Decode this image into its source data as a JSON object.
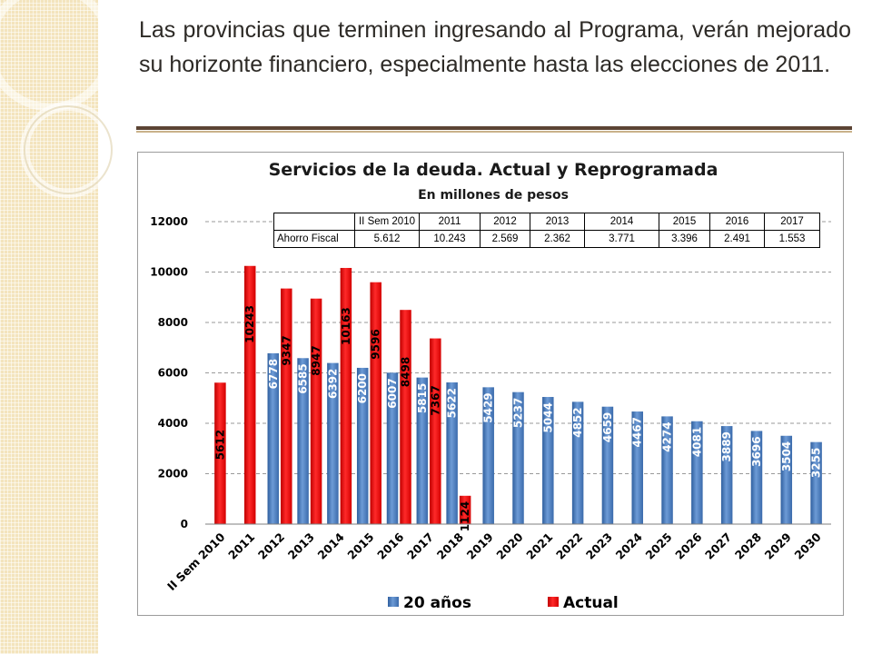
{
  "headline": "Las provincias que terminen ingresando al Programa, verán mejorado su horizonte financiero, especialmente hasta las elecciones de 2011.",
  "colors": {
    "series_20_anos": "#4f81bd",
    "series_actual": "#ff0000",
    "rule": "#5c4434",
    "stripe": "#f3e4bd"
  },
  "savings_table": {
    "headers": [
      "II Sem 2010",
      "2011",
      "2012",
      "2013",
      "2014",
      "2015",
      "2016",
      "2017"
    ],
    "row_label": "Ahorro Fiscal",
    "values": [
      "5.612",
      "10.243",
      "2.569",
      "2.362",
      "3.771",
      "3.396",
      "2.491",
      "1.553"
    ]
  },
  "chart_data": {
    "type": "bar",
    "title": "Servicios de la deuda. Actual y Reprogramada",
    "subtitle": "En millones de pesos",
    "xlabel": "",
    "ylabel": "",
    "ylim": [
      0,
      12000
    ],
    "yticks": [
      0,
      2000,
      4000,
      6000,
      8000,
      10000,
      12000
    ],
    "grid": true,
    "legend_position": "bottom",
    "categories": [
      "II Sem 2010",
      "2011",
      "2012",
      "2013",
      "2014",
      "2015",
      "2016",
      "2017",
      "2018",
      "2019",
      "2020",
      "2021",
      "2022",
      "2023",
      "2024",
      "2025",
      "2026",
      "2027",
      "2028",
      "2029",
      "2030"
    ],
    "series": [
      {
        "name": "20 años",
        "values": [
          null,
          null,
          6778,
          6585,
          6392,
          6200,
          6007,
          5815,
          5622,
          5429,
          5237,
          5044,
          4852,
          4659,
          4467,
          4274,
          4081,
          3889,
          3696,
          3504,
          3255
        ]
      },
      {
        "name": "Actual",
        "values": [
          5612,
          10243,
          9347,
          8947,
          10163,
          9596,
          8498,
          7367,
          1124,
          null,
          null,
          null,
          null,
          null,
          null,
          null,
          null,
          null,
          null,
          null,
          null
        ]
      }
    ]
  }
}
